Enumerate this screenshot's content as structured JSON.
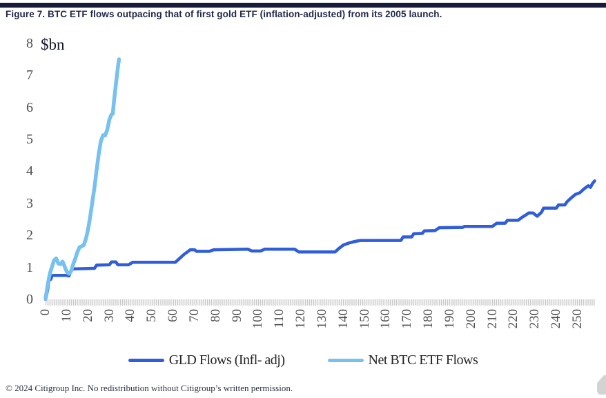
{
  "header": {
    "bar_color": "#181c3a",
    "title": "Figure 7. BTC ETF flows outpacing that of first gold ETF (inflation-adjusted) from its 2005 launch."
  },
  "chart_data": {
    "type": "line",
    "title": "Figure 7. BTC ETF flows outpacing that of first gold ETF (inflation-adjusted) from its 2005 launch.",
    "unit_label": "$bn",
    "xlabel": "",
    "ylabel": "$bn",
    "xlim": [
      0,
      258
    ],
    "ylim": [
      0,
      8
    ],
    "x_ticks": [
      0,
      10,
      20,
      30,
      40,
      50,
      60,
      70,
      80,
      90,
      100,
      110,
      120,
      130,
      140,
      150,
      160,
      170,
      180,
      190,
      200,
      210,
      220,
      230,
      240,
      250
    ],
    "y_ticks": [
      0,
      1,
      2,
      3,
      4,
      5,
      6,
      7,
      8
    ],
    "grid": false,
    "legend_position": "bottom",
    "axis_text_color": "#4d4d4d",
    "series": [
      {
        "name": "GLD Flows (Infl- adj)",
        "color": "#2f5ddb",
        "stroke_width": 4.5,
        "points": [
          [
            0,
            0
          ],
          [
            1,
            0.3
          ],
          [
            1.5,
            0.55
          ],
          [
            2,
            0.62
          ],
          [
            2.5,
            0.63
          ],
          [
            3,
            0.74
          ],
          [
            4,
            0.75
          ],
          [
            10,
            0.75
          ],
          [
            11,
            0.73
          ],
          [
            12,
            0.9
          ],
          [
            13,
            0.95
          ],
          [
            23,
            0.97
          ],
          [
            24,
            1.07
          ],
          [
            30,
            1.08
          ],
          [
            31,
            1.17
          ],
          [
            33,
            1.17
          ],
          [
            34,
            1.08
          ],
          [
            39,
            1.08
          ],
          [
            40,
            1.12
          ],
          [
            41,
            1.16
          ],
          [
            61,
            1.16
          ],
          [
            63,
            1.28
          ],
          [
            65,
            1.4
          ],
          [
            67,
            1.5
          ],
          [
            68,
            1.55
          ],
          [
            70,
            1.55
          ],
          [
            71,
            1.5
          ],
          [
            77,
            1.5
          ],
          [
            79,
            1.55
          ],
          [
            95,
            1.57
          ],
          [
            97,
            1.51
          ],
          [
            101,
            1.51
          ],
          [
            103,
            1.57
          ],
          [
            117,
            1.57
          ],
          [
            119,
            1.48
          ],
          [
            136,
            1.48
          ],
          [
            138,
            1.6
          ],
          [
            140,
            1.7
          ],
          [
            143,
            1.77
          ],
          [
            146,
            1.82
          ],
          [
            148,
            1.84
          ],
          [
            167,
            1.84
          ],
          [
            168,
            1.95
          ],
          [
            172,
            1.95
          ],
          [
            173,
            2.05
          ],
          [
            177,
            2.06
          ],
          [
            178,
            2.14
          ],
          [
            183,
            2.15
          ],
          [
            185,
            2.24
          ],
          [
            196,
            2.25
          ],
          [
            197,
            2.28
          ],
          [
            210,
            2.28
          ],
          [
            212,
            2.38
          ],
          [
            216,
            2.38
          ],
          [
            217,
            2.47
          ],
          [
            222,
            2.47
          ],
          [
            224,
            2.57
          ],
          [
            226,
            2.65
          ],
          [
            227,
            2.7
          ],
          [
            229,
            2.7
          ],
          [
            231,
            2.6
          ],
          [
            233,
            2.72
          ],
          [
            234,
            2.85
          ],
          [
            240,
            2.85
          ],
          [
            241,
            2.95
          ],
          [
            244,
            2.95
          ],
          [
            245,
            3.05
          ],
          [
            247,
            3.17
          ],
          [
            249,
            3.28
          ],
          [
            251,
            3.33
          ],
          [
            253,
            3.45
          ],
          [
            254,
            3.5
          ],
          [
            255,
            3.55
          ],
          [
            256,
            3.5
          ],
          [
            257,
            3.62
          ],
          [
            258,
            3.7
          ]
        ]
      },
      {
        "name": "Net BTC ETF Flows",
        "color": "#76c1ef",
        "stroke_width": 5.5,
        "points": [
          [
            0,
            0.02
          ],
          [
            1,
            0.45
          ],
          [
            2,
            0.8
          ],
          [
            3,
            1.02
          ],
          [
            4,
            1.22
          ],
          [
            5,
            1.28
          ],
          [
            6,
            1.12
          ],
          [
            7,
            1.1
          ],
          [
            8,
            1.18
          ],
          [
            9,
            1.02
          ],
          [
            10,
            0.86
          ],
          [
            11,
            0.8
          ],
          [
            12,
            0.88
          ],
          [
            13,
            1.1
          ],
          [
            14,
            1.28
          ],
          [
            15,
            1.49
          ],
          [
            16,
            1.63
          ],
          [
            17,
            1.66
          ],
          [
            18,
            1.7
          ],
          [
            19,
            1.9
          ],
          [
            20,
            2.2
          ],
          [
            21,
            2.6
          ],
          [
            22,
            3.05
          ],
          [
            23,
            3.5
          ],
          [
            24,
            4.05
          ],
          [
            25,
            4.55
          ],
          [
            26,
            4.95
          ],
          [
            27,
            5.13
          ],
          [
            28,
            5.12
          ],
          [
            29,
            5.3
          ],
          [
            30,
            5.62
          ],
          [
            31,
            5.78
          ],
          [
            31.6,
            5.8
          ],
          [
            32,
            6.1
          ],
          [
            33,
            6.7
          ],
          [
            34,
            7.25
          ],
          [
            34.5,
            7.5
          ]
        ]
      }
    ]
  },
  "footer": {
    "copyright": "© 2024 Citigroup Inc. No redistribution without Citigroup’s written permission."
  }
}
